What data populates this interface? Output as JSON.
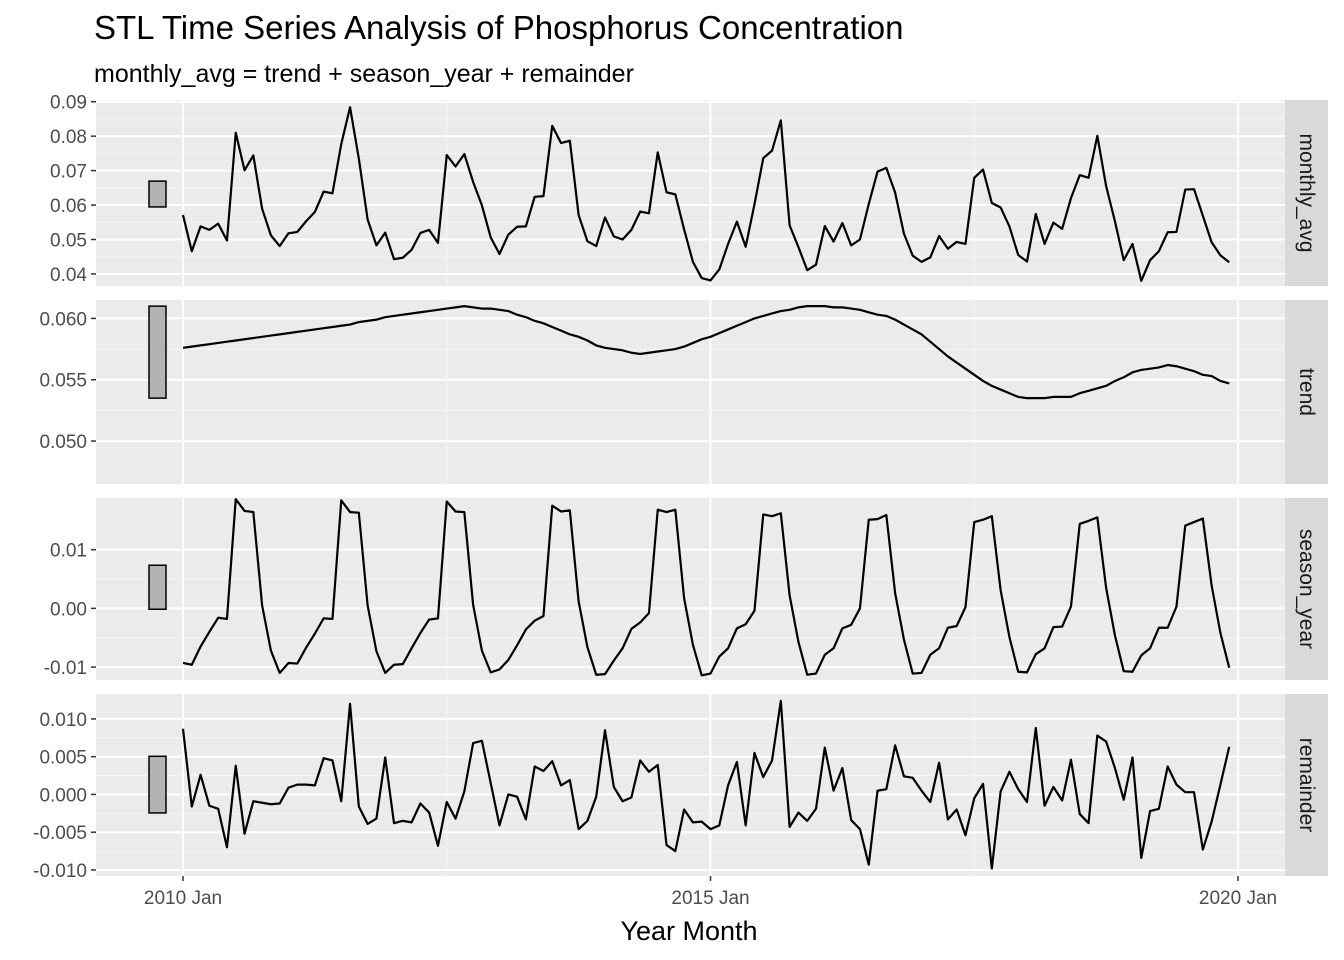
{
  "chart_data": {
    "type": "line",
    "title": "STL Time Series Analysis of Phosphorus Concentration",
    "subtitle": "monthly_avg = trend + season_year + remainder",
    "xlabel": "Year Month",
    "x_ticks": [
      "2010 Jan",
      "2015 Jan",
      "2020 Jan"
    ],
    "x_start": "2010 Jan",
    "x_end": "2019 Dec",
    "grid": true,
    "line_color": "#000000",
    "panel_background": "#ebebeb",
    "strip_background": "#d9d9d9",
    "scale_bar_color": "#b3b3b3",
    "panels": [
      {
        "name": "monthly_avg",
        "ylim": [
          0.0365,
          0.0905
        ],
        "y_ticks": [
          0.04,
          0.05,
          0.06,
          0.07,
          0.08,
          0.09
        ],
        "y_tick_labels": [
          "0.04",
          "0.05",
          "0.06",
          "0.07",
          "0.08",
          "0.09"
        ],
        "values": [
          0.0571,
          0.0466,
          0.0538,
          0.0528,
          0.0546,
          0.0497,
          0.081,
          0.0701,
          0.0744,
          0.0589,
          0.0512,
          0.0481,
          0.0518,
          0.0522,
          0.0553,
          0.058,
          0.0639,
          0.0634,
          0.0777,
          0.0884,
          0.0735,
          0.0558,
          0.0483,
          0.052,
          0.0443,
          0.0447,
          0.047,
          0.0519,
          0.0528,
          0.049,
          0.0745,
          0.0712,
          0.0748,
          0.0667,
          0.0599,
          0.0506,
          0.0458,
          0.0514,
          0.0537,
          0.0538,
          0.0624,
          0.0626,
          0.083,
          0.078,
          0.0787,
          0.0571,
          0.0495,
          0.0481,
          0.0564,
          0.0509,
          0.05,
          0.0528,
          0.0581,
          0.0576,
          0.0753,
          0.0637,
          0.0631,
          0.0529,
          0.0435,
          0.0388,
          0.0381,
          0.0413,
          0.0487,
          0.0552,
          0.0479,
          0.0602,
          0.0736,
          0.0758,
          0.0846,
          0.0541,
          0.0478,
          0.0411,
          0.0427,
          0.0539,
          0.0494,
          0.0548,
          0.0483,
          0.05,
          0.0603,
          0.0697,
          0.0708,
          0.0636,
          0.0517,
          0.0453,
          0.0435,
          0.0448,
          0.051,
          0.0473,
          0.0493,
          0.0487,
          0.0679,
          0.0703,
          0.0606,
          0.0593,
          0.0538,
          0.0455,
          0.0436,
          0.0574,
          0.0487,
          0.0549,
          0.0531,
          0.062,
          0.0687,
          0.0679,
          0.0801,
          0.0655,
          0.0553,
          0.044,
          0.0487,
          0.038,
          0.044,
          0.0466,
          0.0521,
          0.0522,
          0.0645,
          0.0646,
          0.0569,
          0.0492,
          0.0454,
          0.0434
        ]
      },
      {
        "name": "trend",
        "ylim": [
          0.0465,
          0.0615
        ],
        "y_ticks": [
          0.05,
          0.055,
          0.06
        ],
        "y_tick_labels": [
          "0.050",
          "0.055",
          "0.060"
        ],
        "values": [
          0.0576,
          0.0577,
          0.0578,
          0.0579,
          0.058,
          0.0581,
          0.0582,
          0.0583,
          0.0584,
          0.0585,
          0.0586,
          0.0587,
          0.0588,
          0.0589,
          0.059,
          0.0591,
          0.0592,
          0.0593,
          0.0594,
          0.0595,
          0.0597,
          0.0598,
          0.0599,
          0.0601,
          0.0602,
          0.0603,
          0.0604,
          0.0605,
          0.0606,
          0.0607,
          0.0608,
          0.0609,
          0.061,
          0.0609,
          0.0608,
          0.0608,
          0.0607,
          0.0606,
          0.0603,
          0.0601,
          0.0598,
          0.0596,
          0.0593,
          0.059,
          0.0587,
          0.0585,
          0.0582,
          0.0578,
          0.0576,
          0.0575,
          0.0574,
          0.0572,
          0.0571,
          0.0572,
          0.0573,
          0.0574,
          0.0575,
          0.0577,
          0.058,
          0.0583,
          0.0585,
          0.0588,
          0.0591,
          0.0594,
          0.0597,
          0.06,
          0.0602,
          0.0604,
          0.0606,
          0.0607,
          0.0609,
          0.061,
          0.061,
          0.061,
          0.0609,
          0.0609,
          0.0608,
          0.0607,
          0.0605,
          0.0603,
          0.0602,
          0.0599,
          0.0595,
          0.0591,
          0.0587,
          0.0581,
          0.0575,
          0.0569,
          0.0564,
          0.0559,
          0.0554,
          0.0549,
          0.0545,
          0.0542,
          0.0539,
          0.0536,
          0.0535,
          0.0535,
          0.0535,
          0.0536,
          0.0536,
          0.0536,
          0.0539,
          0.0541,
          0.0543,
          0.0545,
          0.0549,
          0.0552,
          0.0556,
          0.0558,
          0.0559,
          0.056,
          0.0562,
          0.0561,
          0.0559,
          0.0557,
          0.0554,
          0.0553,
          0.0549,
          0.0547
        ]
      },
      {
        "name": "season_year",
        "ylim": [
          -0.0122,
          0.0188
        ],
        "y_ticks": [
          -0.01,
          0.0,
          0.01
        ],
        "y_tick_labels": [
          "-0.01",
          "0.00",
          "0.01"
        ],
        "values": [
          -0.0093,
          -0.0096,
          -0.0065,
          -0.004,
          -0.0016,
          -0.0018,
          0.0186,
          0.0166,
          0.0164,
          0.0005,
          -0.0072,
          -0.011,
          -0.0093,
          -0.0094,
          -0.0067,
          -0.0043,
          -0.0017,
          -0.0018,
          0.0184,
          0.0164,
          0.0163,
          0.0005,
          -0.0073,
          -0.011,
          -0.0096,
          -0.0095,
          -0.0068,
          -0.0042,
          -0.0019,
          -0.0017,
          0.0182,
          0.0165,
          0.0164,
          0.0006,
          -0.0072,
          -0.0109,
          -0.0104,
          -0.0088,
          -0.0063,
          -0.0036,
          -0.0021,
          -0.0013,
          0.0175,
          0.0165,
          0.0167,
          0.0012,
          -0.0066,
          -0.0113,
          -0.0112,
          -0.0089,
          -0.0068,
          -0.0035,
          -0.0024,
          -0.0008,
          0.0168,
          0.0164,
          0.0168,
          0.0017,
          -0.0062,
          -0.0114,
          -0.0111,
          -0.0082,
          -0.0068,
          -0.0034,
          -0.0027,
          -0.0004,
          0.016,
          0.0157,
          0.0162,
          0.0022,
          -0.0057,
          -0.0113,
          -0.0111,
          -0.0079,
          -0.0068,
          -0.0034,
          -0.0028,
          0.0,
          0.0151,
          0.0152,
          0.0159,
          0.0026,
          -0.0053,
          -0.0111,
          -0.011,
          -0.0079,
          -0.0068,
          -0.0033,
          -0.003,
          0.0002,
          0.0147,
          0.0151,
          0.0157,
          0.0031,
          -0.0049,
          -0.0108,
          -0.0109,
          -0.0078,
          -0.0068,
          -0.0032,
          -0.0031,
          0.0003,
          0.0144,
          0.0149,
          0.0155,
          0.0035,
          -0.0046,
          -0.0107,
          -0.0108,
          -0.008,
          -0.0068,
          -0.0033,
          -0.0033,
          0.0003,
          0.0141,
          0.0147,
          0.0153,
          0.0039,
          -0.0042,
          -0.0101
        ]
      },
      {
        "name": "remainder",
        "ylim": [
          -0.0108,
          0.0133
        ],
        "y_ticks": [
          -0.01,
          -0.005,
          0.0,
          0.005,
          0.01
        ],
        "y_tick_labels": [
          "-0.010",
          "-0.005",
          "0.000",
          "0.005",
          "0.010"
        ],
        "values": [
          0.0087,
          -0.0016,
          0.0026,
          -0.0015,
          -0.0019,
          -0.007,
          0.0038,
          -0.0052,
          -0.0009,
          -0.0011,
          -0.0013,
          -0.0012,
          0.0009,
          0.0013,
          0.0013,
          0.0012,
          0.0048,
          0.0045,
          -0.0009,
          0.012,
          -0.0016,
          -0.0039,
          -0.0032,
          0.0049,
          -0.0038,
          -0.0035,
          -0.0037,
          -0.0012,
          -0.0024,
          -0.0068,
          -0.001,
          -0.0032,
          0.0004,
          0.0068,
          0.0071,
          0.0015,
          -0.0041,
          0.0,
          -0.0003,
          -0.0033,
          0.0037,
          0.0031,
          0.0044,
          0.0012,
          0.0019,
          -0.0046,
          -0.0035,
          -0.0003,
          0.0085,
          0.001,
          -0.0009,
          -0.0004,
          0.0045,
          0.003,
          0.0039,
          -0.0067,
          -0.0075,
          -0.002,
          -0.0037,
          -0.0036,
          -0.0046,
          -0.0041,
          0.0012,
          0.0043,
          -0.0041,
          0.0055,
          0.0023,
          0.0045,
          0.0124,
          -0.0043,
          -0.0024,
          -0.0035,
          -0.0019,
          0.0062,
          0.0005,
          0.0035,
          -0.0034,
          -0.0046,
          -0.0093,
          0.0005,
          0.0007,
          0.0065,
          0.0024,
          0.0022,
          0.0005,
          -0.001,
          0.0042,
          -0.0033,
          -0.002,
          -0.0054,
          -0.0005,
          0.0014,
          -0.0098,
          0.0004,
          0.003,
          0.0007,
          -0.001,
          0.0088,
          -0.0015,
          0.001,
          -0.0008,
          0.0046,
          -0.0026,
          -0.0038,
          0.0078,
          0.007,
          0.0035,
          -0.0007,
          0.0049,
          -0.0084,
          -0.0022,
          -0.0019,
          0.0037,
          0.0013,
          0.0003,
          0.0003,
          -0.0073,
          -0.0036,
          0.0013,
          0.0063
        ]
      }
    ]
  }
}
